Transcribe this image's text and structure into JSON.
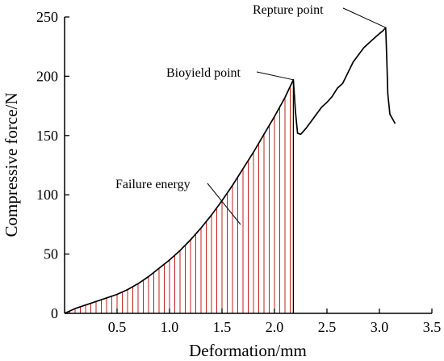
{
  "chart_data": {
    "type": "line",
    "xlabel": "Deformation/mm",
    "ylabel": "Compressive force/N",
    "xlim": [
      0,
      3.5
    ],
    "ylim": [
      0,
      250
    ],
    "xticks": [
      {
        "value": 0.5,
        "label": "0.5"
      },
      {
        "value": 1.0,
        "label": "1.0"
      },
      {
        "value": 1.5,
        "label": "1.5"
      },
      {
        "value": 2.0,
        "label": "2.0"
      },
      {
        "value": 2.5,
        "label": "2.5"
      },
      {
        "value": 3.0,
        "label": "3.0"
      },
      {
        "value": 3.5,
        "label": "3.5"
      }
    ],
    "yticks": [
      {
        "value": 0,
        "label": "0"
      },
      {
        "value": 50,
        "label": "50"
      },
      {
        "value": 100,
        "label": "100"
      },
      {
        "value": 150,
        "label": "150"
      },
      {
        "value": 200,
        "label": "200"
      },
      {
        "value": 250,
        "label": "250"
      }
    ],
    "grid": false,
    "series": [
      {
        "color": "#000000",
        "x": [
          0.0,
          0.1,
          0.2,
          0.3,
          0.4,
          0.5,
          0.6,
          0.7,
          0.8,
          0.9,
          1.0,
          1.1,
          1.2,
          1.3,
          1.4,
          1.5,
          1.6,
          1.7,
          1.8,
          1.9,
          2.0,
          2.1,
          2.18,
          2.2,
          2.22,
          2.25,
          2.3,
          2.35,
          2.4,
          2.45,
          2.5,
          2.55,
          2.6,
          2.65,
          2.7,
          2.75,
          2.8,
          2.85,
          2.9,
          2.95,
          3.0,
          3.03,
          3.06,
          3.07,
          3.08,
          3.1,
          3.15
        ],
        "y": [
          0,
          4,
          7,
          10,
          13,
          16,
          20,
          25,
          31,
          38,
          45,
          53,
          62,
          72,
          83,
          95,
          108,
          122,
          136,
          151,
          166,
          182,
          197,
          170,
          152,
          151,
          156,
          162,
          168,
          174,
          178,
          183,
          190,
          194,
          203,
          212,
          218,
          224,
          228,
          232,
          236,
          238,
          241,
          215,
          185,
          168,
          160
        ]
      }
    ],
    "shaded_region": {
      "label": "Failure energy",
      "x_from": 0,
      "x_to": 2.18,
      "fill": "hatched",
      "color": "#c02020"
    },
    "annotations": [
      {
        "text": "Bioyield point",
        "x": 2.18,
        "y": 197
      },
      {
        "text": "Repture point",
        "x": 3.06,
        "y": 241
      },
      {
        "text": "Failure energy",
        "x": 1.55,
        "y": 80
      }
    ]
  }
}
